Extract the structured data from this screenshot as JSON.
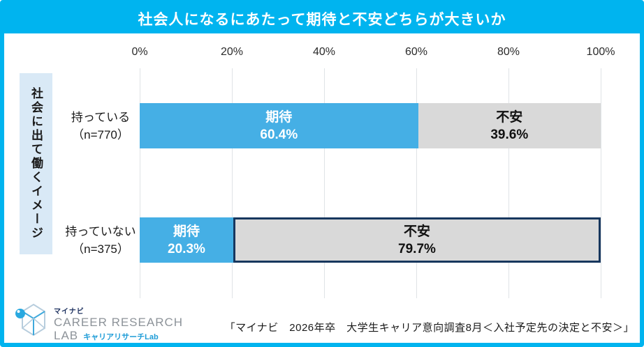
{
  "title": "社会人になるにあたって期待と不安どちらが大きいか",
  "category_box_label": "社会に出て働くイメージ",
  "axis_ticks": [
    "0%",
    "20%",
    "40%",
    "60%",
    "80%",
    "100%"
  ],
  "rows": [
    {
      "label_line1": "持っている",
      "label_line2": "（n=770）",
      "segments": [
        {
          "name": "期待",
          "pct_label": "60.4%",
          "value": 60.4
        },
        {
          "name": "不安",
          "pct_label": "39.6%",
          "value": 39.6
        }
      ]
    },
    {
      "label_line1": "持っていない",
      "label_line2": "（n=375）",
      "segments": [
        {
          "name": "期待",
          "pct_label": "20.3%",
          "value": 20.3
        },
        {
          "name": "不安",
          "pct_label": "79.7%",
          "value": 79.7
        }
      ]
    }
  ],
  "chart_data": {
    "type": "bar",
    "orientation": "horizontal",
    "stacked": true,
    "title": "社会人になるにあたって期待と不安どちらが大きいか",
    "group_axis_label": "社会に出て働くイメージ",
    "categories": [
      "持っている（n=770）",
      "持っていない（n=375）"
    ],
    "series": [
      {
        "name": "期待",
        "values": [
          60.4,
          20.3
        ],
        "color": "#45afe5"
      },
      {
        "name": "不安",
        "values": [
          39.6,
          79.7
        ],
        "color": "#d9d9d9"
      }
    ],
    "xlim": [
      0,
      100
    ],
    "x_ticks": [
      "0%",
      "20%",
      "40%",
      "60%",
      "80%",
      "100%"
    ],
    "grid": true,
    "legend": "labels drawn inside segments",
    "highlight": "不安 79.7% segment of 持っていない row outlined in dark navy"
  },
  "colors": {
    "frame_blue": "#00b4ef",
    "bar_blue": "#45afe5",
    "bar_gray": "#d9d9d9",
    "highlight_navy": "#17375e",
    "category_box_bg": "#d9e9f6",
    "gridline_gray": "#dfe3e6",
    "logo_blue": "#29a9e0",
    "logo_navy": "#1b2f5e",
    "logo_gray": "#8d9399"
  },
  "footer": {
    "logo": {
      "brand_small": "マイナビ",
      "brand_main_1": "CAREER RESEARCH",
      "brand_main_2": "LAB",
      "brand_sub": "キャリアリサーチLab"
    },
    "source": "「マイナビ　2026年卒　大学生キャリア意向調査8月＜入社予定先の決定と不安＞」"
  }
}
